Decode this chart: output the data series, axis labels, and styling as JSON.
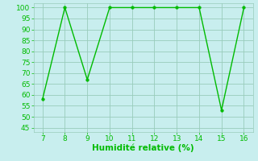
{
  "x": [
    7,
    8,
    9,
    10,
    11,
    12,
    13,
    14,
    15,
    16
  ],
  "y": [
    58,
    100,
    67,
    100,
    100,
    100,
    100,
    100,
    53,
    100
  ],
  "line_color": "#00bb00",
  "marker_color": "#00bb00",
  "bg_color": "#c8eeee",
  "grid_color": "#99ccbb",
  "xlabel": "Humidité relative (%)",
  "xlabel_color": "#00bb00",
  "xlabel_fontsize": 7.5,
  "xlim": [
    6.6,
    16.4
  ],
  "ylim": [
    43,
    102
  ],
  "yticks": [
    45,
    50,
    55,
    60,
    65,
    70,
    75,
    80,
    85,
    90,
    95,
    100
  ],
  "xticks": [
    7,
    8,
    9,
    10,
    11,
    12,
    13,
    14,
    15,
    16
  ],
  "tick_fontsize": 6.5,
  "tick_color": "#00bb00",
  "marker_size": 2.5,
  "line_width": 1.0
}
